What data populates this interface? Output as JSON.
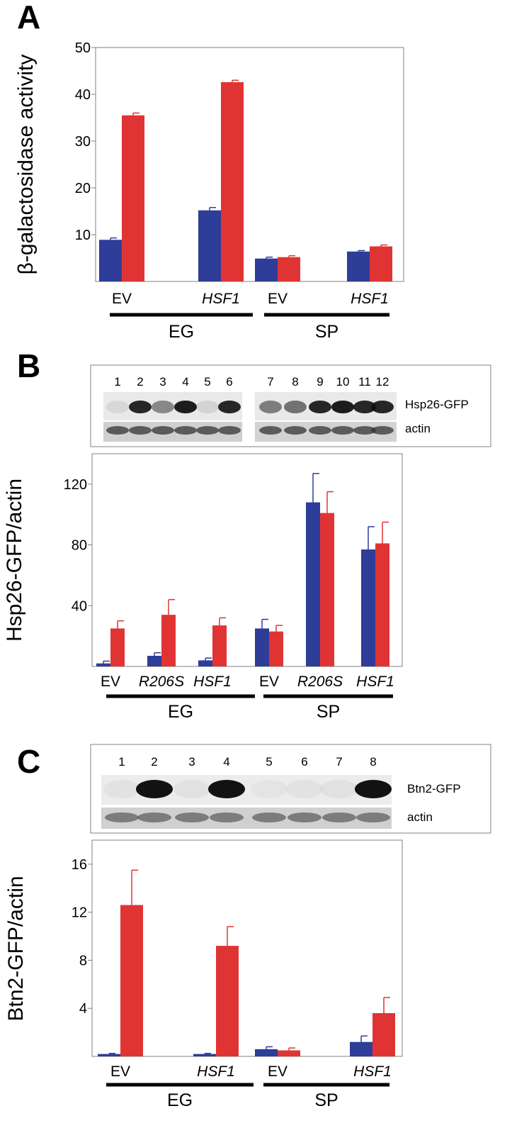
{
  "colors": {
    "series1": "#2e3d97",
    "series2": "#e03434",
    "axis": "#808080",
    "text": "#000000"
  },
  "panels": [
    {
      "letter": "A"
    },
    {
      "letter": "B",
      "blot": {
        "lanes": [
          "1",
          "2",
          "3",
          "4",
          "5",
          "6",
          "7",
          "8",
          "9",
          "10",
          "11",
          "12"
        ],
        "rows": [
          "Hsp26-GFP",
          "actin"
        ]
      }
    },
    {
      "letter": "C",
      "blot": {
        "lanes": [
          "1",
          "2",
          "3",
          "4",
          "5",
          "6",
          "7",
          "8"
        ],
        "rows": [
          "Btn2-GFP",
          "actin"
        ]
      }
    }
  ],
  "chart_data": [
    {
      "type": "bar",
      "ylabel": "β-galactosidase activity",
      "ylim": [
        0,
        50
      ],
      "yticks": [
        10,
        20,
        30,
        40,
        50
      ],
      "categories": [
        "EV",
        "HSF1",
        "EV",
        "HSF1"
      ],
      "category_italic": [
        false,
        true,
        false,
        true
      ],
      "groups": [
        {
          "label": "EG",
          "categories": [
            0,
            1
          ]
        },
        {
          "label": "SP",
          "categories": [
            2,
            3
          ]
        }
      ],
      "series": [
        {
          "values": [
            8.9,
            15.2,
            4.9,
            6.4
          ],
          "errors": [
            0.4,
            0.6,
            0.3,
            0.2
          ]
        },
        {
          "values": [
            35.5,
            42.6,
            5.2,
            7.5
          ],
          "errors": [
            0.5,
            0.4,
            0.3,
            0.3
          ]
        }
      ],
      "grid": false
    },
    {
      "type": "bar",
      "ylabel": "Hsp26-GFP/actin",
      "ylim": [
        0,
        140
      ],
      "yticks": [
        40,
        80,
        120
      ],
      "categories": [
        "EV",
        "R206S",
        "HSF1",
        "EV",
        "R206S",
        "HSF1"
      ],
      "category_italic": [
        false,
        true,
        true,
        false,
        true,
        true
      ],
      "groups": [
        {
          "label": "EG",
          "categories": [
            0,
            1,
            2
          ]
        },
        {
          "label": "SP",
          "categories": [
            3,
            4,
            5
          ]
        }
      ],
      "series": [
        {
          "values": [
            2,
            7,
            4,
            25,
            108,
            77
          ],
          "errors": [
            1.5,
            2,
            1.5,
            6,
            19,
            15
          ]
        },
        {
          "values": [
            25,
            34,
            27,
            23,
            101,
            81
          ],
          "errors": [
            5,
            10,
            5,
            4,
            14,
            14
          ]
        }
      ],
      "grid": false
    },
    {
      "type": "bar",
      "ylabel": "Btn2-GFP/actin",
      "ylim": [
        0,
        18
      ],
      "yticks": [
        4,
        8,
        12,
        16
      ],
      "categories": [
        "EV",
        "HSF1",
        "EV",
        "HSF1"
      ],
      "category_italic": [
        false,
        true,
        false,
        true
      ],
      "groups": [
        {
          "label": "EG",
          "categories": [
            0,
            1
          ]
        },
        {
          "label": "SP",
          "categories": [
            2,
            3
          ]
        }
      ],
      "series": [
        {
          "values": [
            0.2,
            0.2,
            0.6,
            1.2
          ],
          "errors": [
            0.05,
            0.05,
            0.2,
            0.5
          ]
        },
        {
          "values": [
            12.6,
            9.2,
            0.5,
            3.6
          ],
          "errors": [
            2.9,
            1.6,
            0.2,
            1.3
          ]
        }
      ],
      "grid": false
    }
  ]
}
